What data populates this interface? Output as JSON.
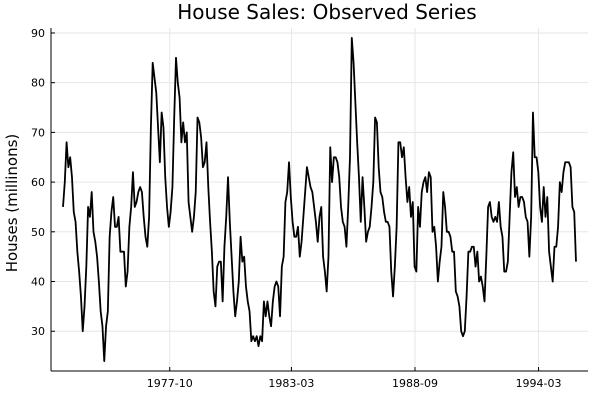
{
  "chart_data": {
    "type": "line",
    "title": "House Sales: Observed Series",
    "xlabel": "",
    "ylabel": "Houses (millinons)",
    "x_start": "1973-01",
    "x_end": "1995-11",
    "x_ticks": [
      "1977-10",
      "1983-03",
      "1988-09",
      "1994-03"
    ],
    "y_ticks": [
      30,
      40,
      50,
      60,
      70,
      80,
      90
    ],
    "ylim": [
      22,
      91
    ],
    "grid": true,
    "legend": "none",
    "series": [
      {
        "color": "#000000",
        "values": [
          55,
          60,
          68,
          63,
          65,
          61,
          54,
          52,
          46,
          42,
          37,
          30,
          35,
          43,
          55,
          53,
          58,
          50,
          48,
          45,
          40,
          34,
          31,
          24,
          31,
          34,
          49,
          54,
          57,
          51,
          51,
          53,
          46,
          46,
          46,
          39,
          42,
          51,
          55,
          62,
          55,
          56,
          58,
          59,
          58,
          53,
          49,
          47,
          53,
          71,
          84,
          81,
          78,
          71,
          64,
          74,
          71,
          61,
          55,
          51,
          54,
          59,
          73,
          85,
          80,
          77,
          68,
          72,
          68,
          70,
          56,
          53,
          50,
          53,
          58,
          73,
          72,
          69,
          63,
          64,
          68,
          59,
          52,
          46,
          38,
          35,
          43,
          44,
          44,
          36,
          47,
          53,
          61,
          52,
          45,
          38,
          33,
          36,
          40,
          49,
          44,
          45,
          39,
          36,
          34,
          28,
          29,
          28,
          29,
          27,
          29,
          28,
          36,
          33,
          36,
          33,
          31,
          36,
          39,
          40,
          39,
          33,
          43,
          45,
          56,
          58,
          64,
          57,
          52,
          49,
          49,
          51,
          45,
          48,
          53,
          58,
          63,
          61,
          59,
          58,
          55,
          52,
          48,
          53,
          55,
          45,
          42,
          38,
          45,
          67,
          60,
          65,
          65,
          64,
          61,
          55,
          52,
          51,
          47,
          55,
          65,
          89,
          84,
          76,
          68,
          61,
          52,
          61,
          55,
          48,
          50,
          51,
          55,
          60,
          73,
          72,
          63,
          58,
          57,
          54,
          52,
          52,
          51,
          42,
          37,
          43,
          51,
          68,
          68,
          65,
          67,
          61,
          56,
          59,
          53,
          56,
          43,
          42,
          55,
          51,
          58,
          60,
          61,
          58,
          62,
          61,
          50,
          51,
          47,
          40,
          44,
          47,
          58,
          55,
          50,
          50,
          49,
          46,
          46,
          38,
          37,
          35,
          30,
          29,
          30,
          37,
          46,
          46,
          47,
          47,
          43,
          46,
          40,
          41,
          39,
          36,
          45,
          55,
          56,
          53,
          52,
          53,
          52,
          56,
          51,
          49,
          42,
          42,
          44,
          53,
          62,
          66,
          57,
          59,
          55,
          57,
          57,
          56,
          53,
          52,
          45,
          53,
          74,
          65,
          65,
          62,
          55,
          52,
          59,
          53,
          57,
          46,
          43,
          40,
          47,
          47,
          51,
          60,
          58,
          62,
          64,
          64,
          64,
          63,
          55,
          54,
          44
        ]
      }
    ]
  }
}
